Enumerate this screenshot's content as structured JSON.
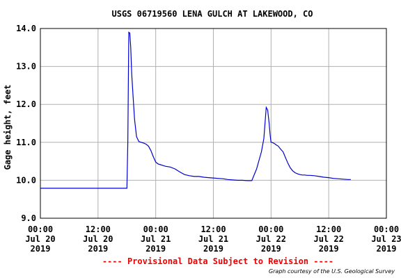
{
  "chart_data": {
    "type": "line",
    "title": "USGS 06719560 LENA GULCH AT LAKEWOOD, CO",
    "ylabel": "Gage height, feet",
    "xlabel": "",
    "ylim": [
      9.0,
      14.0
    ],
    "xlim": [
      0,
      72
    ],
    "x_unit": "hours since 00:00 Jul 20 2019",
    "y_ticks": [
      "9.0",
      "10.0",
      "11.0",
      "12.0",
      "13.0",
      "14.0"
    ],
    "x_ticks": [
      {
        "hour": 0,
        "lines": [
          "00:00",
          "Jul 20",
          "2019"
        ]
      },
      {
        "hour": 12,
        "lines": [
          "12:00",
          "Jul 20",
          "2019"
        ]
      },
      {
        "hour": 24,
        "lines": [
          "00:00",
          "Jul 21",
          "2019"
        ]
      },
      {
        "hour": 36,
        "lines": [
          "12:00",
          "Jul 21",
          "2019"
        ]
      },
      {
        "hour": 48,
        "lines": [
          "00:00",
          "Jul 22",
          "2019"
        ]
      },
      {
        "hour": 60,
        "lines": [
          "12:00",
          "Jul 22",
          "2019"
        ]
      },
      {
        "hour": 72,
        "lines": [
          "00:00",
          "Jul 23",
          "2019"
        ]
      }
    ],
    "grid": true,
    "line_color": "#0000cc",
    "series": [
      {
        "name": "",
        "x": [
          0,
          18.0,
          18.2,
          18.4,
          18.6,
          18.8,
          19.0,
          19.3,
          19.6,
          20.0,
          20.5,
          21.0,
          21.5,
          22.0,
          22.5,
          23.0,
          23.5,
          24.0,
          24.5,
          25.0,
          25.5,
          26.0,
          27.0,
          28.0,
          29.0,
          30.0,
          31.0,
          32.0,
          33.0,
          34.0,
          35.0,
          36.0,
          37.0,
          38.0,
          39.0,
          40.0,
          41.0,
          42.0,
          43.0,
          44.0,
          45.0,
          46.0,
          46.5,
          47.0,
          47.3,
          47.6,
          47.8,
          48.0,
          48.2,
          48.5,
          48.8,
          49.0,
          49.5,
          50.0,
          50.5,
          51.0,
          51.5,
          52.0,
          52.5,
          53.0,
          53.5,
          54.0,
          54.5,
          55.0,
          55.5,
          56.0,
          57.0,
          58.0,
          59.0,
          60.0,
          61.0,
          62.0,
          63.0,
          64.0,
          64.6
        ],
        "values": [
          9.79,
          9.79,
          11.0,
          13.9,
          13.88,
          13.5,
          12.8,
          12.2,
          11.6,
          11.15,
          11.02,
          11.0,
          10.98,
          10.95,
          10.9,
          10.78,
          10.62,
          10.48,
          10.43,
          10.41,
          10.39,
          10.37,
          10.35,
          10.3,
          10.22,
          10.15,
          10.12,
          10.1,
          10.1,
          10.08,
          10.07,
          10.06,
          10.05,
          10.04,
          10.02,
          10.01,
          10.0,
          10.0,
          9.99,
          9.99,
          10.3,
          10.75,
          11.1,
          11.92,
          11.85,
          11.5,
          11.2,
          11.0,
          11.0,
          10.98,
          10.96,
          10.94,
          10.9,
          10.82,
          10.75,
          10.6,
          10.45,
          10.33,
          10.25,
          10.2,
          10.17,
          10.15,
          10.14,
          10.14,
          10.13,
          10.13,
          10.12,
          10.1,
          10.08,
          10.07,
          10.05,
          10.04,
          10.03,
          10.02,
          10.02
        ]
      }
    ]
  },
  "footer": {
    "provisional": "---- Provisional Data Subject to Revision ----",
    "courtesy": "Graph courtesy of the U.S. Geological Survey"
  },
  "colors": {
    "provisional": "#ee0000",
    "grid": "#b0b0b0",
    "frame": "#000000"
  }
}
